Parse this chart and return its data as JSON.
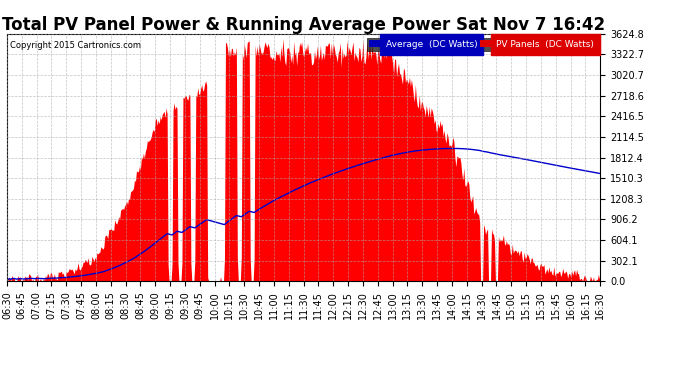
{
  "title": "Total PV Panel Power & Running Average Power Sat Nov 7 16:42",
  "copyright": "Copyright 2015 Cartronics.com",
  "legend_avg": "Average  (DC Watts)",
  "legend_pv": "PV Panels  (DC Watts)",
  "legend_avg_bg": "#0000bb",
  "legend_pv_bg": "#dd0000",
  "ymax": 3624.8,
  "yticks": [
    0.0,
    302.1,
    604.1,
    906.2,
    1208.3,
    1510.3,
    1812.4,
    2114.5,
    2416.5,
    2718.6,
    3020.7,
    3322.7,
    3624.8
  ],
  "background_color": "#ffffff",
  "plot_bg": "#ffffff",
  "grid_color": "#aaaaaa",
  "pv_color": "#ff0000",
  "avg_color": "#0000cc",
  "title_fontsize": 12,
  "axis_fontsize": 7,
  "xstart_minutes": 390,
  "xend_minutes": 990
}
